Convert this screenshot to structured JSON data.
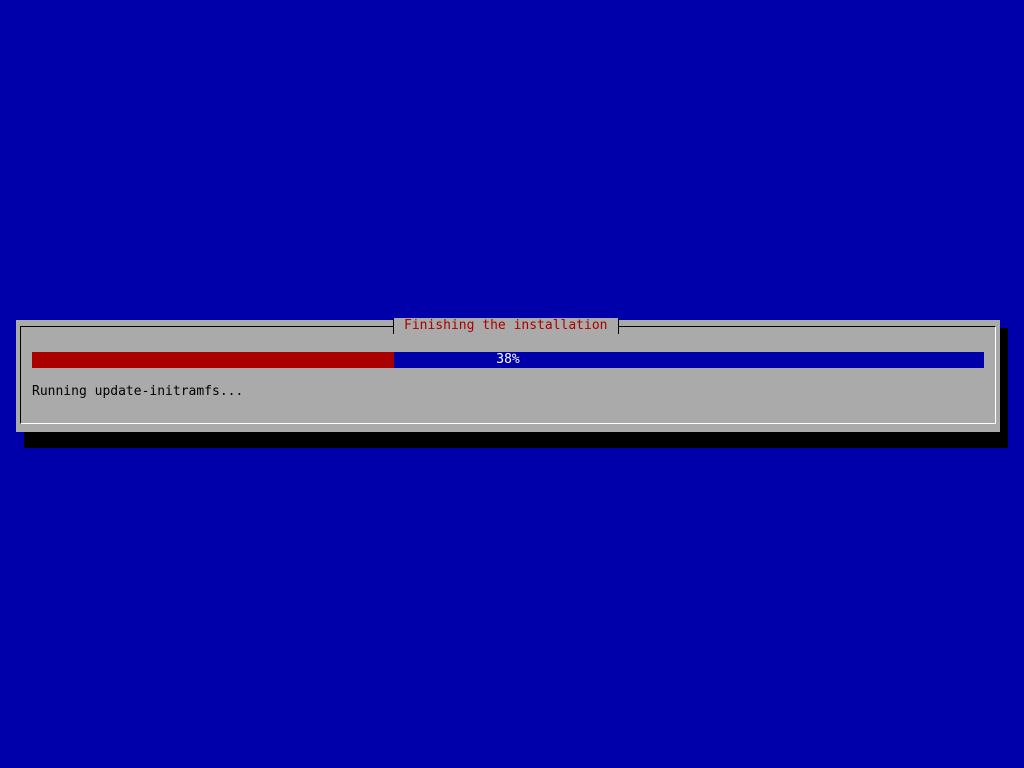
{
  "dialog": {
    "title": "Finishing the installation",
    "progress_percent": 38,
    "progress_label": "38%",
    "status_text": "Running update-initramfs..."
  },
  "colors": {
    "background": "#0000aa",
    "dialog": "#aaaaaa",
    "progress_fill": "#aa0000",
    "title": "#aa0000"
  }
}
